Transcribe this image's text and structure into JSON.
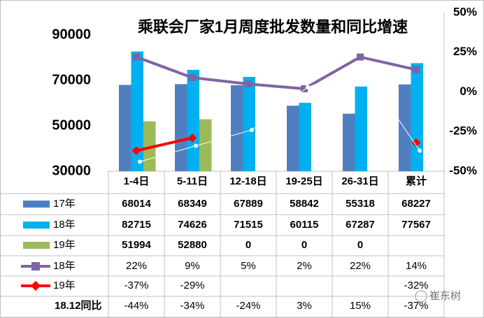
{
  "chart_data": {
    "type": "bar",
    "title": "乘联会厂家1月周度批发数量和同比增速",
    "categories": [
      "1-4日",
      "5-11日",
      "12-18日",
      "19-25日",
      "26-31日",
      "累计"
    ],
    "ylim": [
      30000,
      100000
    ],
    "yticks": [
      30000,
      50000,
      70000,
      90000
    ],
    "y2lim": [
      -50,
      50
    ],
    "y2ticks": [
      {
        "value": -50,
        "label": "-50%"
      },
      {
        "value": -25,
        "label": "-25%"
      },
      {
        "value": 0,
        "label": "0%"
      },
      {
        "value": 25,
        "label": "25%"
      },
      {
        "value": 50,
        "label": "50%"
      }
    ],
    "series": [
      {
        "name": "17年",
        "type": "bar",
        "color": "#4f7fc0",
        "values": [
          68014,
          68349,
          67889,
          58842,
          55318,
          68227
        ]
      },
      {
        "name": "18年",
        "type": "bar",
        "color": "#00b0f0",
        "values": [
          82715,
          74626,
          71515,
          60115,
          67287,
          77567
        ]
      },
      {
        "name": "19年",
        "type": "bar",
        "color": "#9bbb59",
        "values": [
          51994,
          52880,
          0,
          0,
          0,
          null
        ]
      },
      {
        "name": "18年",
        "type": "line",
        "axis": "y2",
        "color": "#8064a2",
        "values": [
          22,
          9,
          5,
          2,
          22,
          14
        ],
        "value_labels": [
          "22%",
          "9%",
          "5%",
          "2%",
          "22%",
          "14%"
        ]
      },
      {
        "name": "19年",
        "type": "line",
        "axis": "y2",
        "color": "#ff0000",
        "values": [
          -37,
          -29,
          null,
          null,
          null,
          -32
        ],
        "value_labels": [
          "-37%",
          "-29%",
          null,
          null,
          null,
          "-32%"
        ]
      },
      {
        "name": "18.12同比",
        "type": "line",
        "axis": "y2",
        "color": "#ffffff",
        "values": [
          -44,
          -34,
          -24,
          3,
          15,
          -37
        ],
        "value_labels": [
          "-44%",
          "-34%",
          "-24%",
          "3%",
          "15%",
          "-37%"
        ]
      }
    ],
    "watermark": "崔东树"
  }
}
